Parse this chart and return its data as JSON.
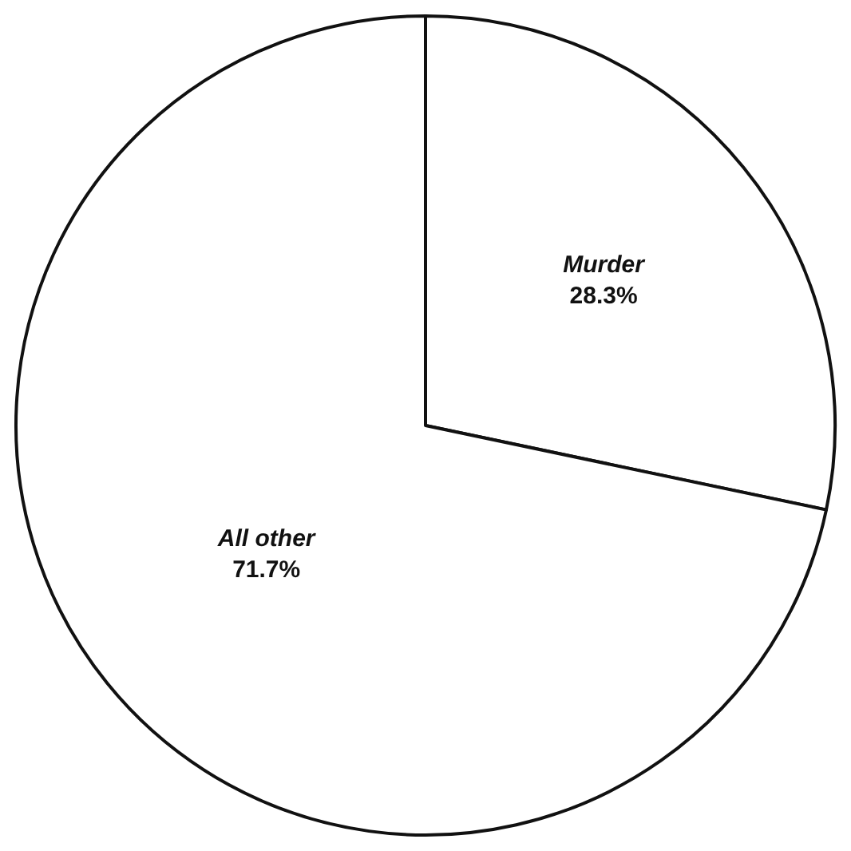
{
  "chart_data": {
    "type": "pie",
    "categories": [
      "Murder",
      "All other"
    ],
    "values": [
      28.3,
      71.7
    ],
    "value_labels": [
      "28.3%",
      "71.7%"
    ],
    "colors": [
      "#ffffff",
      "#ffffff"
    ],
    "legend": false
  }
}
